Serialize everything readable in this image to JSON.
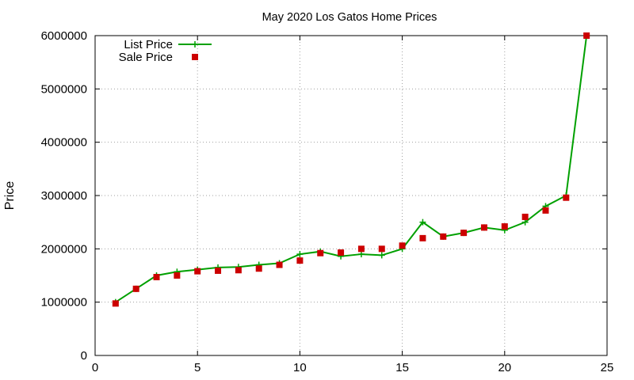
{
  "chart_data": {
    "type": "line",
    "title": "May 2020 Los Gatos Home Prices",
    "xlabel": "",
    "ylabel": "Price",
    "xlim": [
      0,
      25
    ],
    "ylim": [
      0,
      6000000
    ],
    "x_ticks": [
      0,
      5,
      10,
      15,
      20,
      25
    ],
    "y_ticks": [
      0,
      1000000,
      2000000,
      3000000,
      4000000,
      5000000,
      6000000
    ],
    "grid": true,
    "legend_position": "top-left",
    "series": [
      {
        "name": "List Price",
        "style": "line-with-plus-markers",
        "color": "#00a000",
        "x": [
          1,
          2,
          3,
          4,
          5,
          6,
          7,
          8,
          9,
          10,
          11,
          12,
          13,
          14,
          15,
          16,
          17,
          18,
          19,
          20,
          21,
          22,
          23,
          24
        ],
        "y": [
          1000000,
          1250000,
          1500000,
          1570000,
          1610000,
          1650000,
          1660000,
          1700000,
          1730000,
          1900000,
          1950000,
          1860000,
          1900000,
          1880000,
          2000000,
          2500000,
          2230000,
          2300000,
          2400000,
          2350000,
          2500000,
          2800000,
          3000000,
          6000000
        ]
      },
      {
        "name": "Sale Price",
        "style": "square-markers",
        "color": "#cc0000",
        "x": [
          1,
          2,
          3,
          4,
          5,
          6,
          7,
          8,
          9,
          10,
          11,
          12,
          13,
          14,
          15,
          16,
          17,
          18,
          19,
          20,
          21,
          22,
          23,
          24
        ],
        "y": [
          975000,
          1250000,
          1470000,
          1500000,
          1580000,
          1590000,
          1600000,
          1630000,
          1700000,
          1780000,
          1920000,
          1930000,
          2000000,
          2000000,
          2060000,
          2200000,
          2230000,
          2300000,
          2400000,
          2420000,
          2600000,
          2720000,
          2960000,
          6000000
        ]
      }
    ]
  }
}
